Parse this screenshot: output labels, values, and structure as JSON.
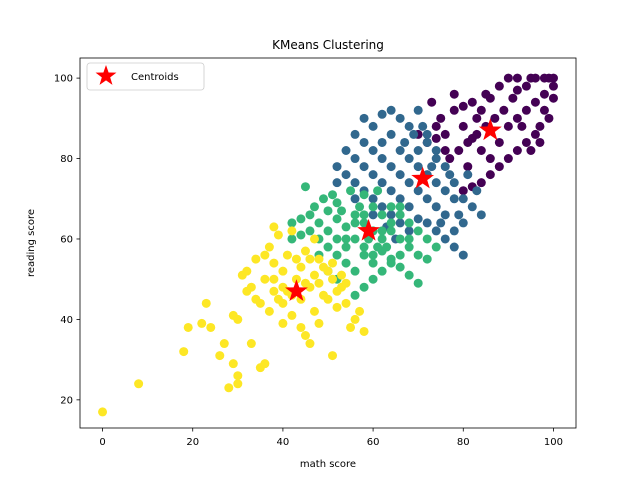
{
  "chart_data": {
    "type": "scatter",
    "title": "KMeans Clustering",
    "xlabel": "math score",
    "ylabel": "reading score",
    "xlim": [
      -5,
      105
    ],
    "ylim": [
      13,
      105
    ],
    "xticks": [
      0,
      20,
      40,
      60,
      80,
      100
    ],
    "yticks": [
      20,
      40,
      60,
      80,
      100
    ],
    "grid": false,
    "legend": {
      "placement": "top-left",
      "entries": [
        "Centroids"
      ]
    },
    "cluster_colors": [
      "#440154",
      "#31688e",
      "#35b779",
      "#fde725"
    ],
    "centroid_color": "#ff0000",
    "clusters": [
      {
        "center": [
          86,
          87
        ],
        "points": [
          [
            90,
            100
          ],
          [
            92,
            100
          ],
          [
            95,
            100
          ],
          [
            96,
            100
          ],
          [
            98,
            100
          ],
          [
            99,
            100
          ],
          [
            100,
            100
          ],
          [
            94,
            98
          ],
          [
            92,
            97
          ],
          [
            88,
            98
          ],
          [
            86,
            95
          ],
          [
            84,
            92
          ],
          [
            82,
            94
          ],
          [
            80,
            88
          ],
          [
            78,
            92
          ],
          [
            76,
            86
          ],
          [
            75,
            90
          ],
          [
            74,
            85
          ],
          [
            73,
            94
          ],
          [
            78,
            96
          ],
          [
            82,
            85
          ],
          [
            84,
            82
          ],
          [
            86,
            80
          ],
          [
            88,
            84
          ],
          [
            90,
            88
          ],
          [
            92,
            90
          ],
          [
            94,
            92
          ],
          [
            96,
            94
          ],
          [
            98,
            96
          ],
          [
            100,
            98
          ],
          [
            100,
            95
          ],
          [
            98,
            92
          ],
          [
            97,
            88
          ],
          [
            96,
            86
          ],
          [
            94,
            84
          ],
          [
            92,
            82
          ],
          [
            90,
            80
          ],
          [
            88,
            78
          ],
          [
            86,
            76
          ],
          [
            84,
            74
          ],
          [
            82,
            73
          ],
          [
            80,
            72
          ],
          [
            85,
            88
          ],
          [
            83,
            86
          ],
          [
            81,
            84
          ],
          [
            79,
            82
          ],
          [
            77,
            80
          ],
          [
            89,
            92
          ],
          [
            91,
            95
          ],
          [
            93,
            88
          ],
          [
            95,
            82
          ],
          [
            99,
            90
          ],
          [
            97,
            84
          ],
          [
            87,
            90
          ],
          [
            85,
            96
          ],
          [
            83,
            90
          ],
          [
            81,
            78
          ],
          [
            76,
            82
          ],
          [
            74,
            88
          ],
          [
            72,
            84
          ],
          [
            70,
            86
          ],
          [
            80,
            93
          ]
        ]
      },
      {
        "center": [
          71,
          75
        ],
        "points": [
          [
            58,
            90
          ],
          [
            60,
            88
          ],
          [
            62,
            91
          ],
          [
            64,
            92
          ],
          [
            66,
            90
          ],
          [
            68,
            88
          ],
          [
            70,
            92
          ],
          [
            72,
            86
          ],
          [
            74,
            80
          ],
          [
            76,
            78
          ],
          [
            78,
            74
          ],
          [
            80,
            70
          ],
          [
            82,
            68
          ],
          [
            84,
            66
          ],
          [
            80,
            64
          ],
          [
            78,
            62
          ],
          [
            76,
            66
          ],
          [
            74,
            68
          ],
          [
            72,
            70
          ],
          [
            70,
            72
          ],
          [
            68,
            74
          ],
          [
            66,
            76
          ],
          [
            64,
            78
          ],
          [
            62,
            80
          ],
          [
            60,
            82
          ],
          [
            58,
            84
          ],
          [
            56,
            86
          ],
          [
            56,
            80
          ],
          [
            54,
            82
          ],
          [
            52,
            78
          ],
          [
            56,
            74
          ],
          [
            58,
            72
          ],
          [
            60,
            70
          ],
          [
            62,
            68
          ],
          [
            64,
            66
          ],
          [
            66,
            64
          ],
          [
            68,
            62
          ],
          [
            70,
            65
          ],
          [
            72,
            64
          ],
          [
            74,
            62
          ],
          [
            76,
            60
          ],
          [
            78,
            58
          ],
          [
            80,
            56
          ],
          [
            60,
            76
          ],
          [
            62,
            74
          ],
          [
            64,
            72
          ],
          [
            66,
            70
          ],
          [
            68,
            68
          ],
          [
            70,
            78
          ],
          [
            72,
            76
          ],
          [
            74,
            74
          ],
          [
            76,
            72
          ],
          [
            78,
            70
          ],
          [
            66,
            82
          ],
          [
            68,
            80
          ],
          [
            70,
            82
          ],
          [
            72,
            84
          ],
          [
            74,
            82
          ],
          [
            64,
            86
          ],
          [
            62,
            84
          ],
          [
            58,
            78
          ],
          [
            54,
            76
          ],
          [
            52,
            74
          ],
          [
            56,
            70
          ],
          [
            60,
            66
          ],
          [
            63,
            63
          ],
          [
            65,
            60
          ],
          [
            75,
            64
          ],
          [
            79,
            66
          ],
          [
            81,
            76
          ],
          [
            83,
            72
          ],
          [
            67,
            84
          ],
          [
            69,
            86
          ],
          [
            71,
            88
          ],
          [
            73,
            78
          ],
          [
            77,
            76
          ]
        ]
      },
      {
        "center": [
          59,
          62
        ],
        "points": [
          [
            45,
            73
          ],
          [
            49,
            70
          ],
          [
            52,
            69
          ],
          [
            55,
            72
          ],
          [
            58,
            71
          ],
          [
            61,
            72
          ],
          [
            44,
            65
          ],
          [
            46,
            66
          ],
          [
            48,
            64
          ],
          [
            50,
            67
          ],
          [
            52,
            65
          ],
          [
            54,
            63
          ],
          [
            56,
            66
          ],
          [
            58,
            64
          ],
          [
            60,
            62
          ],
          [
            62,
            60
          ],
          [
            64,
            62
          ],
          [
            66,
            60
          ],
          [
            68,
            58
          ],
          [
            70,
            56
          ],
          [
            72,
            55
          ],
          [
            70,
            49
          ],
          [
            68,
            51
          ],
          [
            66,
            53
          ],
          [
            64,
            55
          ],
          [
            62,
            57
          ],
          [
            60,
            56
          ],
          [
            58,
            58
          ],
          [
            56,
            60
          ],
          [
            54,
            58
          ],
          [
            52,
            60
          ],
          [
            50,
            62
          ],
          [
            48,
            60
          ],
          [
            46,
            62
          ],
          [
            44,
            61
          ],
          [
            42,
            60
          ],
          [
            42,
            64
          ],
          [
            50,
            52
          ],
          [
            52,
            50
          ],
          [
            54,
            54
          ],
          [
            56,
            52
          ],
          [
            58,
            56
          ],
          [
            60,
            54
          ],
          [
            62,
            52
          ],
          [
            64,
            54
          ],
          [
            66,
            56
          ],
          [
            68,
            60
          ],
          [
            70,
            62
          ],
          [
            72,
            60
          ],
          [
            74,
            58
          ],
          [
            58,
            48
          ],
          [
            56,
            46
          ],
          [
            60,
            50
          ],
          [
            62,
            62
          ],
          [
            64,
            64
          ],
          [
            66,
            66
          ],
          [
            68,
            64
          ],
          [
            48,
            56
          ],
          [
            50,
            58
          ],
          [
            52,
            56
          ],
          [
            54,
            60
          ],
          [
            56,
            64
          ],
          [
            58,
            66
          ],
          [
            60,
            68
          ],
          [
            62,
            66
          ],
          [
            64,
            68
          ],
          [
            66,
            68
          ],
          [
            47,
            68
          ],
          [
            51,
            71
          ],
          [
            53,
            67
          ],
          [
            57,
            68
          ],
          [
            59,
            60
          ],
          [
            61,
            58
          ],
          [
            63,
            58
          ]
        ]
      },
      {
        "center": [
          43,
          47
        ],
        "points": [
          [
            0,
            17
          ],
          [
            8,
            24
          ],
          [
            18,
            32
          ],
          [
            19,
            38
          ],
          [
            22,
            39
          ],
          [
            23,
            44
          ],
          [
            24,
            38
          ],
          [
            26,
            31
          ],
          [
            27,
            34
          ],
          [
            28,
            23
          ],
          [
            29,
            29
          ],
          [
            29,
            41
          ],
          [
            30,
            26
          ],
          [
            30,
            24
          ],
          [
            30,
            40
          ],
          [
            31,
            51
          ],
          [
            32,
            47
          ],
          [
            33,
            34
          ],
          [
            33,
            48
          ],
          [
            34,
            55
          ],
          [
            35,
            44
          ],
          [
            35,
            28
          ],
          [
            36,
            29
          ],
          [
            36,
            50
          ],
          [
            37,
            58
          ],
          [
            38,
            63
          ],
          [
            38,
            47
          ],
          [
            39,
            45
          ],
          [
            40,
            39
          ],
          [
            40,
            52
          ],
          [
            41,
            56
          ],
          [
            42,
            62
          ],
          [
            42,
            41
          ],
          [
            43,
            50
          ],
          [
            44,
            53
          ],
          [
            45,
            36
          ],
          [
            45,
            57
          ],
          [
            46,
            55
          ],
          [
            47,
            60
          ],
          [
            47,
            42
          ],
          [
            48,
            49
          ],
          [
            49,
            46
          ],
          [
            50,
            52
          ],
          [
            51,
            31
          ],
          [
            51,
            54
          ],
          [
            52,
            43
          ],
          [
            53,
            48
          ],
          [
            54,
            44
          ],
          [
            55,
            38
          ],
          [
            56,
            40
          ],
          [
            57,
            42
          ],
          [
            58,
            37
          ],
          [
            46,
            34
          ],
          [
            44,
            38
          ],
          [
            40,
            44
          ],
          [
            38,
            50
          ],
          [
            36,
            56
          ],
          [
            39,
            61
          ],
          [
            41,
            47
          ],
          [
            43,
            55
          ],
          [
            45,
            49
          ],
          [
            47,
            51
          ],
          [
            49,
            53
          ],
          [
            51,
            50
          ],
          [
            53,
            51
          ],
          [
            37,
            42
          ],
          [
            34,
            45
          ],
          [
            32,
            52
          ],
          [
            48,
            39
          ],
          [
            50,
            45
          ],
          [
            52,
            47
          ],
          [
            54,
            49
          ],
          [
            40,
            48
          ],
          [
            42,
            46
          ],
          [
            38,
            54
          ],
          [
            44,
            45
          ],
          [
            46,
            48
          ],
          [
            48,
            55
          ]
        ]
      }
    ]
  }
}
